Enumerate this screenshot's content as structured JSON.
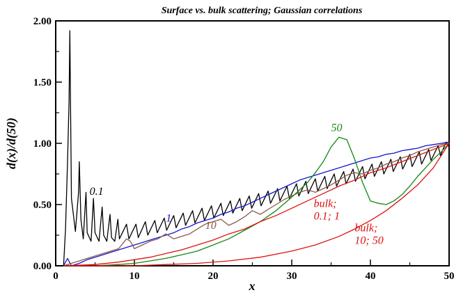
{
  "chart_data": {
    "type": "line",
    "title": "Surface vs. bulk scattering; Gaussian correlations",
    "xlabel": "x",
    "ylabel": "d(x)/d(50)",
    "xlim": [
      0,
      50
    ],
    "ylim": [
      0,
      2
    ],
    "x_ticks": [
      "0",
      "10",
      "20",
      "30",
      "40",
      "50"
    ],
    "y_ticks": [
      "0.00",
      "0.50",
      "1.00",
      "1.50",
      "2.00"
    ],
    "grid": false,
    "series": [
      {
        "name": "0.1",
        "color": "#000000",
        "label_pos": [
          4.3,
          0.58
        ],
        "points": [
          [
            1.0,
            0.0
          ],
          [
            1.25,
            0.3
          ],
          [
            1.5,
            0.85
          ],
          [
            1.7,
            1.35
          ],
          [
            1.8,
            1.92
          ],
          [
            2.0,
            0.55
          ],
          [
            2.5,
            0.28
          ],
          [
            2.9,
            0.6
          ],
          [
            3.0,
            0.85
          ],
          [
            3.2,
            0.38
          ],
          [
            3.5,
            0.22
          ],
          [
            3.85,
            0.6
          ],
          [
            4.0,
            0.27
          ],
          [
            4.5,
            0.2
          ],
          [
            4.8,
            0.55
          ],
          [
            5.0,
            0.27
          ],
          [
            5.5,
            0.2
          ],
          [
            5.9,
            0.48
          ],
          [
            6.1,
            0.25
          ],
          [
            6.5,
            0.2
          ],
          [
            6.9,
            0.42
          ],
          [
            7.1,
            0.23
          ],
          [
            7.5,
            0.2
          ],
          [
            7.9,
            0.38
          ],
          [
            8.1,
            0.22
          ],
          [
            9.0,
            0.34
          ],
          [
            9.3,
            0.22
          ],
          [
            10.2,
            0.34
          ],
          [
            10.5,
            0.23
          ],
          [
            11.4,
            0.36
          ],
          [
            11.7,
            0.25
          ],
          [
            12.6,
            0.37
          ],
          [
            12.9,
            0.27
          ],
          [
            13.8,
            0.39
          ],
          [
            14.1,
            0.29
          ],
          [
            15.0,
            0.41
          ],
          [
            15.3,
            0.31
          ],
          [
            16.2,
            0.43
          ],
          [
            16.5,
            0.33
          ],
          [
            17.4,
            0.45
          ],
          [
            17.7,
            0.35
          ],
          [
            18.6,
            0.47
          ],
          [
            18.9,
            0.37
          ],
          [
            19.8,
            0.49
          ],
          [
            20.1,
            0.39
          ],
          [
            21.0,
            0.51
          ],
          [
            21.3,
            0.41
          ],
          [
            22.2,
            0.53
          ],
          [
            22.5,
            0.43
          ],
          [
            23.4,
            0.55
          ],
          [
            23.7,
            0.45
          ],
          [
            24.6,
            0.57
          ],
          [
            24.9,
            0.47
          ],
          [
            25.8,
            0.59
          ],
          [
            26.1,
            0.49
          ],
          [
            27.0,
            0.61
          ],
          [
            27.3,
            0.51
          ],
          [
            28.2,
            0.63
          ],
          [
            28.5,
            0.53
          ],
          [
            29.4,
            0.65
          ],
          [
            29.7,
            0.55
          ],
          [
            30.6,
            0.67
          ],
          [
            30.9,
            0.57
          ],
          [
            31.8,
            0.69
          ],
          [
            32.1,
            0.59
          ],
          [
            33.0,
            0.71
          ],
          [
            33.3,
            0.61
          ],
          [
            34.2,
            0.73
          ],
          [
            34.5,
            0.63
          ],
          [
            35.4,
            0.75
          ],
          [
            35.7,
            0.65
          ],
          [
            36.6,
            0.77
          ],
          [
            36.9,
            0.67
          ],
          [
            37.8,
            0.79
          ],
          [
            38.1,
            0.69
          ],
          [
            39.0,
            0.81
          ],
          [
            39.3,
            0.71
          ],
          [
            40.2,
            0.83
          ],
          [
            40.5,
            0.73
          ],
          [
            41.4,
            0.85
          ],
          [
            41.7,
            0.75
          ],
          [
            42.6,
            0.87
          ],
          [
            42.9,
            0.77
          ],
          [
            43.8,
            0.89
          ],
          [
            44.1,
            0.79
          ],
          [
            45.0,
            0.91
          ],
          [
            45.3,
            0.81
          ],
          [
            46.2,
            0.93
          ],
          [
            46.5,
            0.83
          ],
          [
            47.4,
            0.95
          ],
          [
            47.7,
            0.86
          ],
          [
            48.6,
            0.98
          ],
          [
            48.9,
            0.9
          ],
          [
            49.6,
            1.01
          ],
          [
            50.0,
            0.97
          ]
        ]
      },
      {
        "name": "1",
        "color": "#1515cc",
        "label_pos": [
          14.0,
          0.36
        ],
        "points": [
          [
            1.0,
            0.0
          ],
          [
            1.5,
            0.06
          ],
          [
            2.0,
            0.0
          ],
          [
            3,
            0.02
          ],
          [
            4,
            0.05
          ],
          [
            5,
            0.07
          ],
          [
            6,
            0.09
          ],
          [
            7,
            0.11
          ],
          [
            8,
            0.13
          ],
          [
            9,
            0.15
          ],
          [
            10,
            0.17
          ],
          [
            11,
            0.19
          ],
          [
            12,
            0.21
          ],
          [
            13,
            0.23
          ],
          [
            14,
            0.25
          ],
          [
            15,
            0.27
          ],
          [
            16,
            0.3
          ],
          [
            17,
            0.32
          ],
          [
            18,
            0.35
          ],
          [
            19,
            0.37
          ],
          [
            20,
            0.39
          ],
          [
            21,
            0.42
          ],
          [
            22,
            0.44
          ],
          [
            23,
            0.47
          ],
          [
            24,
            0.49
          ],
          [
            25,
            0.52
          ],
          [
            26,
            0.55
          ],
          [
            27,
            0.58
          ],
          [
            28,
            0.61
          ],
          [
            29,
            0.64
          ],
          [
            30,
            0.67
          ],
          [
            31,
            0.7
          ],
          [
            32,
            0.72
          ],
          [
            33,
            0.74
          ],
          [
            34,
            0.76
          ],
          [
            35,
            0.78
          ],
          [
            36,
            0.8
          ],
          [
            37,
            0.82
          ],
          [
            38,
            0.84
          ],
          [
            39,
            0.86
          ],
          [
            40,
            0.88
          ],
          [
            41,
            0.89
          ],
          [
            42,
            0.91
          ],
          [
            43,
            0.92
          ],
          [
            44,
            0.94
          ],
          [
            45,
            0.95
          ],
          [
            46,
            0.96
          ],
          [
            47,
            0.98
          ],
          [
            48,
            0.99
          ],
          [
            49,
            1.0
          ],
          [
            50,
            1.01
          ]
        ]
      },
      {
        "name": "10",
        "color": "#8b5a4a",
        "label_pos": [
          19.0,
          0.3
        ],
        "points": [
          [
            1.0,
            0.0
          ],
          [
            2,
            0.02
          ],
          [
            3,
            0.04
          ],
          [
            4,
            0.06
          ],
          [
            5,
            0.08
          ],
          [
            6,
            0.1
          ],
          [
            7,
            0.12
          ],
          [
            8,
            0.14
          ],
          [
            9,
            0.22
          ],
          [
            9.5,
            0.2
          ],
          [
            10,
            0.14
          ],
          [
            11,
            0.17
          ],
          [
            12,
            0.2
          ],
          [
            13,
            0.22
          ],
          [
            14,
            0.26
          ],
          [
            15,
            0.22
          ],
          [
            16,
            0.24
          ],
          [
            17,
            0.26
          ],
          [
            18,
            0.3
          ],
          [
            19,
            0.34
          ],
          [
            20,
            0.36
          ],
          [
            21,
            0.38
          ],
          [
            22,
            0.33
          ],
          [
            23,
            0.36
          ],
          [
            24,
            0.4
          ],
          [
            25,
            0.45
          ],
          [
            26,
            0.42
          ],
          [
            27,
            0.46
          ],
          [
            28,
            0.5
          ],
          [
            29,
            0.54
          ],
          [
            30,
            0.57
          ],
          [
            31,
            0.6
          ],
          [
            32,
            0.62
          ],
          [
            33,
            0.6
          ],
          [
            34,
            0.63
          ],
          [
            35,
            0.66
          ],
          [
            36,
            0.7
          ],
          [
            37,
            0.74
          ],
          [
            38,
            0.76
          ],
          [
            39,
            0.75
          ],
          [
            40,
            0.78
          ],
          [
            41,
            0.8
          ],
          [
            42,
            0.83
          ],
          [
            43,
            0.85
          ],
          [
            44,
            0.88
          ],
          [
            45,
            0.9
          ],
          [
            46,
            0.93
          ],
          [
            47,
            0.95
          ],
          [
            48,
            0.97
          ],
          [
            49,
            0.99
          ],
          [
            50,
            1.0
          ]
        ]
      },
      {
        "name": "50",
        "color": "#118811",
        "label_pos": [
          35.0,
          1.1
        ],
        "points": [
          [
            1.0,
            0.0
          ],
          [
            5,
            0.0
          ],
          [
            8,
            0.01
          ],
          [
            10,
            0.02
          ],
          [
            12,
            0.04
          ],
          [
            14,
            0.06
          ],
          [
            16,
            0.09
          ],
          [
            18,
            0.12
          ],
          [
            20,
            0.17
          ],
          [
            22,
            0.22
          ],
          [
            24,
            0.29
          ],
          [
            26,
            0.36
          ],
          [
            28,
            0.45
          ],
          [
            30,
            0.56
          ],
          [
            31,
            0.62
          ],
          [
            32,
            0.68
          ],
          [
            33,
            0.76
          ],
          [
            34,
            0.85
          ],
          [
            35,
            0.97
          ],
          [
            36,
            1.05
          ],
          [
            37,
            1.03
          ],
          [
            38,
            0.87
          ],
          [
            39,
            0.68
          ],
          [
            40,
            0.53
          ],
          [
            41,
            0.51
          ],
          [
            42,
            0.5
          ],
          [
            43,
            0.53
          ],
          [
            44,
            0.58
          ],
          [
            45,
            0.65
          ],
          [
            46,
            0.73
          ],
          [
            47,
            0.8
          ],
          [
            48,
            0.87
          ],
          [
            49,
            0.93
          ],
          [
            50,
            1.0
          ]
        ]
      },
      {
        "name": "bulk; 0.1; 1",
        "color": "#dd1111",
        "label_pos": [
          32.8,
          0.48
        ],
        "points": [
          [
            1.0,
            0.0
          ],
          [
            5,
            0.01
          ],
          [
            8,
            0.03
          ],
          [
            10,
            0.05
          ],
          [
            12,
            0.07
          ],
          [
            14,
            0.1
          ],
          [
            16,
            0.13
          ],
          [
            18,
            0.17
          ],
          [
            20,
            0.21
          ],
          [
            22,
            0.26
          ],
          [
            24,
            0.3
          ],
          [
            26,
            0.36
          ],
          [
            28,
            0.41
          ],
          [
            30,
            0.47
          ],
          [
            32,
            0.53
          ],
          [
            34,
            0.59
          ],
          [
            36,
            0.65
          ],
          [
            38,
            0.7
          ],
          [
            40,
            0.76
          ],
          [
            42,
            0.8
          ],
          [
            44,
            0.85
          ],
          [
            46,
            0.9
          ],
          [
            48,
            0.95
          ],
          [
            50,
            1.0
          ]
        ]
      },
      {
        "name": "bulk; 10; 50",
        "color": "#dd1111",
        "label_pos": [
          38.0,
          0.28
        ],
        "points": [
          [
            1.0,
            0.0
          ],
          [
            10,
            0.0
          ],
          [
            14,
            0.01
          ],
          [
            18,
            0.02
          ],
          [
            22,
            0.04
          ],
          [
            26,
            0.07
          ],
          [
            30,
            0.12
          ],
          [
            33,
            0.17
          ],
          [
            36,
            0.24
          ],
          [
            38,
            0.3
          ],
          [
            40,
            0.37
          ],
          [
            42,
            0.45
          ],
          [
            44,
            0.55
          ],
          [
            46,
            0.66
          ],
          [
            48,
            0.8
          ],
          [
            50,
            1.0
          ]
        ]
      }
    ]
  }
}
